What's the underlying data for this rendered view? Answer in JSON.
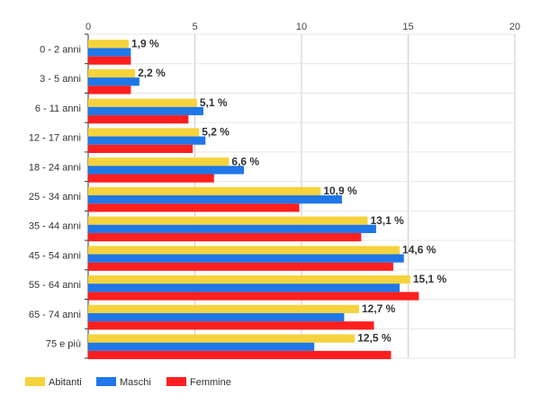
{
  "chart_data": {
    "type": "bar",
    "orientation": "horizontal",
    "title": "",
    "xlabel": "",
    "ylabel": "",
    "xlim": [
      0,
      20
    ],
    "x_ticks": [
      0,
      5,
      10,
      15,
      20
    ],
    "x_tick_labels": [
      "0",
      "5",
      "10",
      "15",
      "20"
    ],
    "x_axis_position": "top",
    "grid": true,
    "legend_position": "bottom-left",
    "categories": [
      "0 - 2 anni",
      "3 - 5 anni",
      "6 - 11 anni",
      "12 - 17 anni",
      "18 - 24 anni",
      "25 - 34 anni",
      "35 - 44 anni",
      "45 - 54 anni",
      "55 - 64 anni",
      "65 - 74 anni",
      "75 e più"
    ],
    "series": [
      {
        "name": "Abitanti",
        "color": "#f6d33c",
        "values": [
          1.9,
          2.2,
          5.1,
          5.2,
          6.6,
          10.9,
          13.1,
          14.6,
          15.1,
          12.7,
          12.5
        ]
      },
      {
        "name": "Maschi",
        "color": "#1f77e8",
        "values": [
          2.0,
          2.4,
          5.4,
          5.5,
          7.3,
          11.9,
          13.5,
          14.8,
          14.6,
          12.0,
          10.6
        ]
      },
      {
        "name": "Femmine",
        "color": "#ff1f1f",
        "values": [
          2.0,
          2.0,
          4.7,
          4.9,
          5.9,
          9.9,
          12.8,
          14.3,
          15.5,
          13.4,
          14.2
        ]
      }
    ],
    "data_labels": [
      "1,9 %",
      "2,2 %",
      "5,1 %",
      "5,2 %",
      "6,6 %",
      "10,9 %",
      "13,1 %",
      "14,6 %",
      "15,1 %",
      "12,7 %",
      "12,5 %"
    ]
  }
}
